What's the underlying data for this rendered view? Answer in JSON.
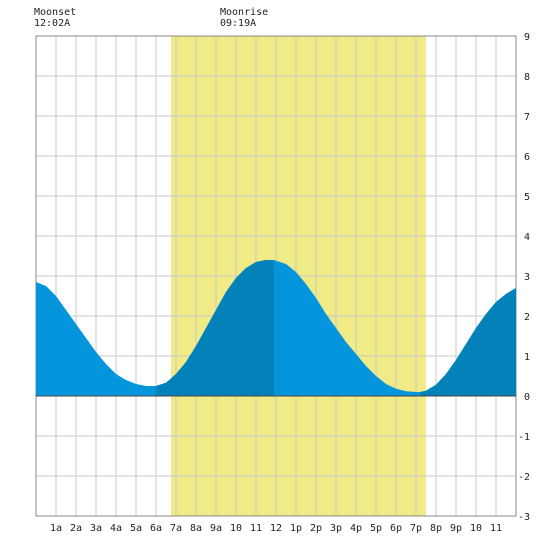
{
  "moon": {
    "moonset_title": "Moonset",
    "moonset_time": "12:02A",
    "moonrise_title": "Moonrise",
    "moonrise_time": "09:19A"
  },
  "colors": {
    "daylight": "#f0ea87",
    "tide_light": "#0495dd",
    "tide_dark": "#0381b9",
    "grid": "#c8c8c8",
    "zero_line": "#444444"
  },
  "chart_data": {
    "type": "area",
    "title": "",
    "xlabel": "",
    "ylabel": "",
    "xlim": [
      0,
      24
    ],
    "ylim": [
      -3,
      9
    ],
    "grid": true,
    "x_ticks": [
      {
        "x": 1,
        "label": "1a"
      },
      {
        "x": 2,
        "label": "2a"
      },
      {
        "x": 3,
        "label": "3a"
      },
      {
        "x": 4,
        "label": "4a"
      },
      {
        "x": 5,
        "label": "5a"
      },
      {
        "x": 6,
        "label": "6a"
      },
      {
        "x": 7,
        "label": "7a"
      },
      {
        "x": 8,
        "label": "8a"
      },
      {
        "x": 9,
        "label": "9a"
      },
      {
        "x": 10,
        "label": "10"
      },
      {
        "x": 11,
        "label": "11"
      },
      {
        "x": 12,
        "label": "12"
      },
      {
        "x": 13,
        "label": "1p"
      },
      {
        "x": 14,
        "label": "2p"
      },
      {
        "x": 15,
        "label": "3p"
      },
      {
        "x": 16,
        "label": "4p"
      },
      {
        "x": 17,
        "label": "5p"
      },
      {
        "x": 18,
        "label": "6p"
      },
      {
        "x": 19,
        "label": "7p"
      },
      {
        "x": 20,
        "label": "8p"
      },
      {
        "x": 21,
        "label": "9p"
      },
      {
        "x": 22,
        "label": "10"
      },
      {
        "x": 23,
        "label": "11"
      }
    ],
    "y_ticks": [
      -3,
      -2,
      -1,
      0,
      1,
      2,
      3,
      4,
      5,
      6,
      7,
      8,
      9
    ],
    "daylight": {
      "start": 6.75,
      "end": 19.5
    },
    "tide_extremes": [
      {
        "type": "low",
        "x": 6.0,
        "y": 0.25
      },
      {
        "type": "high",
        "x": 11.9,
        "y": 3.4
      },
      {
        "type": "low",
        "x": 19.2,
        "y": 0.1
      }
    ],
    "shading_bands": [
      {
        "shade": "dark",
        "start": 6.0,
        "end": 11.9
      },
      {
        "shade": "dark",
        "start": 19.2,
        "end": 24.0
      }
    ],
    "series": [
      {
        "x": [
          0,
          0.5,
          1,
          1.5,
          2,
          2.5,
          3,
          3.5,
          4,
          4.5,
          5,
          5.5,
          6,
          6.5,
          7,
          7.5,
          8,
          8.5,
          9,
          9.5,
          10,
          10.5,
          11,
          11.5,
          11.9,
          12.5,
          13,
          13.5,
          14,
          14.5,
          15,
          15.5,
          16,
          16.5,
          17,
          17.5,
          18,
          18.5,
          19,
          19.2,
          19.5,
          20,
          20.5,
          21,
          21.5,
          22,
          22.5,
          23,
          23.5,
          24
        ],
        "y": [
          2.85,
          2.75,
          2.5,
          2.15,
          1.8,
          1.45,
          1.1,
          0.8,
          0.55,
          0.4,
          0.3,
          0.25,
          0.25,
          0.33,
          0.55,
          0.85,
          1.25,
          1.7,
          2.15,
          2.6,
          2.95,
          3.2,
          3.35,
          3.4,
          3.4,
          3.3,
          3.1,
          2.8,
          2.45,
          2.05,
          1.7,
          1.35,
          1.05,
          0.75,
          0.5,
          0.3,
          0.18,
          0.12,
          0.1,
          0.1,
          0.13,
          0.28,
          0.55,
          0.9,
          1.3,
          1.7,
          2.05,
          2.35,
          2.55,
          2.7
        ]
      }
    ]
  }
}
